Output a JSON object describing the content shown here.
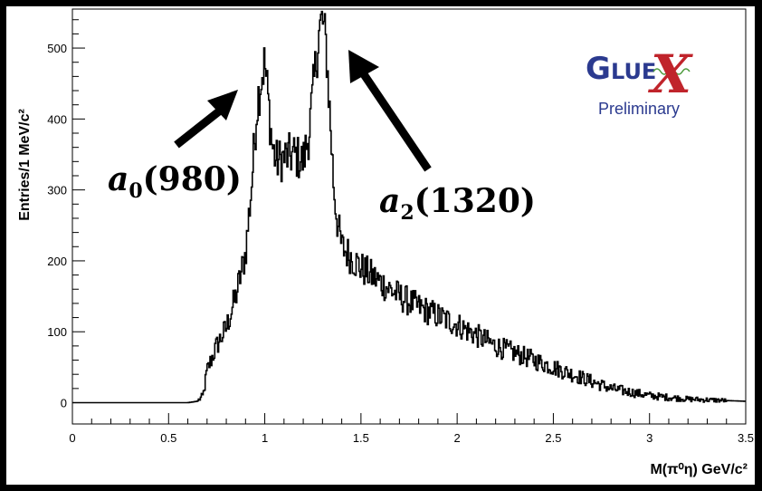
{
  "chart_data": {
    "type": "bar",
    "style": "step-histogram",
    "xlabel": "M(π⁰η) GeV/c²",
    "ylabel": "Entries/1 MeV/c²",
    "xlim": [
      0,
      3.5
    ],
    "ylim": [
      -30,
      555
    ],
    "x_ticks": [
      "0",
      "0.5",
      "1",
      "1.5",
      "2",
      "2.5",
      "3",
      "3.5"
    ],
    "y_ticks": [
      "0",
      "100",
      "200",
      "300",
      "400",
      "500"
    ],
    "grid": false,
    "x": [
      0.0,
      0.6,
      0.65,
      0.68,
      0.7,
      0.75,
      0.8,
      0.85,
      0.9,
      0.93,
      0.96,
      0.98,
      1.0,
      1.02,
      1.04,
      1.06,
      1.1,
      1.15,
      1.2,
      1.23,
      1.26,
      1.28,
      1.3,
      1.32,
      1.34,
      1.36,
      1.38,
      1.4,
      1.5,
      1.6,
      1.7,
      1.8,
      2.0,
      2.2,
      2.4,
      2.6,
      2.8,
      3.0,
      3.2,
      3.5
    ],
    "values": [
      0,
      0,
      2,
      10,
      45,
      80,
      105,
      150,
      210,
      300,
      420,
      455,
      480,
      420,
      360,
      340,
      345,
      350,
      340,
      380,
      460,
      520,
      540,
      500,
      400,
      300,
      250,
      220,
      190,
      170,
      150,
      135,
      110,
      80,
      60,
      40,
      20,
      10,
      5,
      2
    ],
    "annotations": [
      {
        "label": "a0(980)",
        "base": "a",
        "sub": "0",
        "paren": "(980)",
        "points_to": [
          0.92,
          460
        ]
      },
      {
        "label": "a2(1320)",
        "base": "a",
        "sub": "2",
        "paren": "(1320)",
        "points_to": [
          1.3,
          515
        ]
      }
    ]
  },
  "logo": {
    "brand": "GLUEX",
    "g": "G",
    "lue": "LUE",
    "x": "X",
    "subtitle": "Preliminary"
  }
}
